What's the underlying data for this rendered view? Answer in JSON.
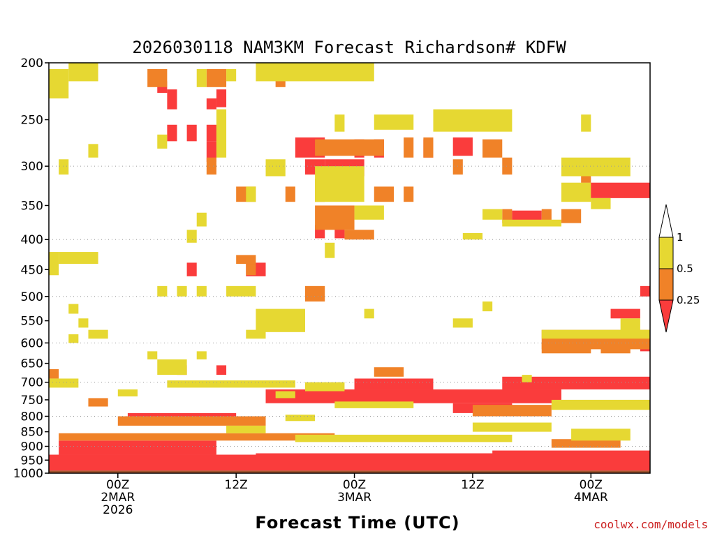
{
  "chart_data": {
    "type": "heatmap",
    "title": "2026030118 NAM3KM Forecast Richardson# KDFW",
    "xlabel": "Forecast Time (UTC)",
    "credit": "coolwx.com/models",
    "y_axis": {
      "scale": "log",
      "range": [
        1000,
        200
      ],
      "ticks": [
        200,
        250,
        300,
        350,
        400,
        450,
        500,
        550,
        600,
        650,
        700,
        750,
        800,
        850,
        900,
        950,
        1000
      ],
      "dotted_gridlines": [
        300,
        400,
        500,
        600,
        700,
        800,
        900,
        1000
      ]
    },
    "x_axis": {
      "range_hours": [
        -7,
        54
      ],
      "ticks": [
        {
          "hour": 0,
          "lines": [
            "00Z",
            "2MAR",
            "2026"
          ]
        },
        {
          "hour": 12,
          "lines": [
            "12Z"
          ]
        },
        {
          "hour": 24,
          "lines": [
            "00Z",
            "3MAR"
          ]
        },
        {
          "hour": 36,
          "lines": [
            "12Z"
          ]
        },
        {
          "hour": 48,
          "lines": [
            "00Z",
            "4MAR"
          ]
        }
      ]
    },
    "legend": {
      "placement": "right",
      "labels": [
        "1",
        "0.5",
        "0.25"
      ],
      "bins": [
        {
          "range": "> 1",
          "color": "#ffffff"
        },
        {
          "range": "0.5 - 1",
          "color": "#e6d832"
        },
        {
          "range": "0.25 - 0.5",
          "color": "#f08228"
        },
        {
          "range": "< 0.25",
          "color": "#fa3c3c"
        }
      ]
    },
    "colors": {
      "ri_lt_0_25": "#fa3c3c",
      "ri_0_25_0_5": "#f08228",
      "ri_0_5_1": "#e6d832",
      "below_ground": "#a0522d"
    },
    "below_ground_p_hpa": 990,
    "cells": [
      {
        "h0": 39,
        "h1": 54,
        "p0": 685,
        "p1": 720,
        "bin": "ri_lt_0_25"
      },
      {
        "h0": 15,
        "h1": 45,
        "p0": 720,
        "p1": 760,
        "bin": "ri_lt_0_25"
      },
      {
        "h0": 24,
        "h1": 32,
        "p0": 690,
        "p1": 720,
        "bin": "ri_lt_0_25"
      },
      {
        "h0": 34,
        "h1": 40,
        "p0": 760,
        "p1": 790,
        "bin": "ri_lt_0_25"
      },
      {
        "h0": 1,
        "h1": 12,
        "p0": 790,
        "p1": 815,
        "bin": "ri_lt_0_25"
      },
      {
        "h0": 47,
        "h1": 54,
        "p0": 320,
        "p1": 340,
        "bin": "ri_lt_0_25"
      },
      {
        "h0": 18,
        "h1": 21,
        "p0": 268,
        "p1": 290,
        "bin": "ri_lt_0_25"
      },
      {
        "h0": 24,
        "h1": 25,
        "p0": 270,
        "p1": 290,
        "bin": "ri_lt_0_25"
      },
      {
        "h0": 26,
        "h1": 27,
        "p0": 270,
        "p1": 290,
        "bin": "ri_lt_0_25"
      },
      {
        "h0": 31,
        "h1": 32,
        "p0": 270,
        "p1": 290,
        "bin": "ri_lt_0_25"
      },
      {
        "h0": 34,
        "h1": 36,
        "p0": 268,
        "p1": 288,
        "bin": "ri_lt_0_25"
      },
      {
        "h0": 19,
        "h1": 21,
        "p0": 292,
        "p1": 310,
        "bin": "ri_lt_0_25"
      },
      {
        "h0": 21,
        "h1": 25,
        "p0": 292,
        "p1": 312,
        "bin": "ri_lt_0_25"
      },
      {
        "h0": 40,
        "h1": 43,
        "p0": 357,
        "p1": 375,
        "bin": "ri_lt_0_25"
      },
      {
        "h0": 20,
        "h1": 21,
        "p0": 378,
        "p1": 398,
        "bin": "ri_lt_0_25"
      },
      {
        "h0": 22,
        "h1": 23,
        "p0": 378,
        "p1": 398,
        "bin": "ri_lt_0_25"
      },
      {
        "h0": 13,
        "h1": 15,
        "p0": 438,
        "p1": 462,
        "bin": "ri_lt_0_25"
      },
      {
        "h0": 7,
        "h1": 8,
        "p0": 438,
        "p1": 462,
        "bin": "ri_lt_0_25"
      },
      {
        "h0": 50,
        "h1": 53,
        "p0": 525,
        "p1": 545,
        "bin": "ri_lt_0_25"
      },
      {
        "h0": 53,
        "h1": 54,
        "p0": 480,
        "p1": 500,
        "bin": "ri_lt_0_25"
      },
      {
        "h0": 53,
        "h1": 54,
        "p0": 590,
        "p1": 620,
        "bin": "ri_lt_0_25"
      },
      {
        "h0": 4,
        "h1": 5,
        "p0": 215,
        "p1": 225,
        "bin": "ri_lt_0_25"
      },
      {
        "h0": 5,
        "h1": 6,
        "p0": 222,
        "p1": 240,
        "bin": "ri_lt_0_25"
      },
      {
        "h0": 10,
        "h1": 11,
        "p0": 222,
        "p1": 238,
        "bin": "ri_lt_0_25"
      },
      {
        "h0": 5,
        "h1": 6,
        "p0": 255,
        "p1": 272,
        "bin": "ri_lt_0_25"
      },
      {
        "h0": 7,
        "h1": 8,
        "p0": 255,
        "p1": 272,
        "bin": "ri_lt_0_25"
      },
      {
        "h0": 9,
        "h1": 10,
        "p0": 255,
        "p1": 272,
        "bin": "ri_lt_0_25"
      },
      {
        "h0": 9,
        "h1": 10,
        "p0": 272,
        "p1": 295,
        "bin": "ri_lt_0_25"
      },
      {
        "h0": 9,
        "h1": 10,
        "p0": 230,
        "p1": 240,
        "bin": "ri_lt_0_25"
      },
      {
        "h0": 6,
        "h1": 7,
        "p0": 655,
        "p1": 680,
        "bin": "ri_lt_0_25"
      },
      {
        "h0": 10,
        "h1": 11,
        "p0": 655,
        "p1": 680,
        "bin": "ri_lt_0_25"
      },
      {
        "h0": 25,
        "h1": 27,
        "p0": 735,
        "p1": 770,
        "bin": "ri_lt_0_25"
      },
      {
        "h0": 28,
        "h1": 30,
        "p0": 725,
        "p1": 760,
        "bin": "ri_lt_0_25"
      },
      {
        "h0": -7,
        "h1": 54,
        "p0": 930,
        "p1": 990,
        "bin": "ri_lt_0_25"
      },
      {
        "h0": -6,
        "h1": 10,
        "p0": 880,
        "p1": 930,
        "bin": "ri_lt_0_25"
      },
      {
        "h0": 14,
        "h1": 54,
        "p0": 925,
        "p1": 940,
        "bin": "ri_lt_0_25"
      },
      {
        "h0": 38,
        "h1": 54,
        "p0": 915,
        "p1": 930,
        "bin": "ri_lt_0_25"
      },
      {
        "h0": 20,
        "h1": 27,
        "p0": 270,
        "p1": 288,
        "bin": "ri_0_25_0_5"
      },
      {
        "h0": 37,
        "h1": 39,
        "p0": 270,
        "p1": 290,
        "bin": "ri_0_25_0_5"
      },
      {
        "h0": 29,
        "h1": 30,
        "p0": 268,
        "p1": 290,
        "bin": "ri_0_25_0_5"
      },
      {
        "h0": 31,
        "h1": 32,
        "p0": 268,
        "p1": 290,
        "bin": "ri_0_25_0_5"
      },
      {
        "h0": 20,
        "h1": 24,
        "p0": 350,
        "p1": 385,
        "bin": "ri_0_25_0_5"
      },
      {
        "h0": 23,
        "h1": 26,
        "p0": 385,
        "p1": 400,
        "bin": "ri_0_25_0_5"
      },
      {
        "h0": 20,
        "h1": 21,
        "p0": 315,
        "p1": 345,
        "bin": "ri_0_25_0_5"
      },
      {
        "h0": 26,
        "h1": 28,
        "p0": 325,
        "p1": 345,
        "bin": "ri_0_25_0_5"
      },
      {
        "h0": 29,
        "h1": 30,
        "p0": 325,
        "p1": 345,
        "bin": "ri_0_25_0_5"
      },
      {
        "h0": 17,
        "h1": 18,
        "p0": 325,
        "p1": 345,
        "bin": "ri_0_25_0_5"
      },
      {
        "h0": 39,
        "h1": 40,
        "p0": 355,
        "p1": 375,
        "bin": "ri_0_25_0_5"
      },
      {
        "h0": 43,
        "h1": 44,
        "p0": 355,
        "p1": 375,
        "bin": "ri_0_25_0_5"
      },
      {
        "h0": 45,
        "h1": 47,
        "p0": 355,
        "p1": 375,
        "bin": "ri_0_25_0_5"
      },
      {
        "h0": 47,
        "h1": 48,
        "p0": 305,
        "p1": 320,
        "bin": "ri_0_25_0_5"
      },
      {
        "h0": 12,
        "h1": 14,
        "p0": 325,
        "p1": 345,
        "bin": "ri_0_25_0_5"
      },
      {
        "h0": 39,
        "h1": 40,
        "p0": 290,
        "p1": 310,
        "bin": "ri_0_25_0_5"
      },
      {
        "h0": 34,
        "h1": 35,
        "p0": 292,
        "p1": 310,
        "bin": "ri_0_25_0_5"
      },
      {
        "h0": 9,
        "h1": 10,
        "p0": 290,
        "p1": 310,
        "bin": "ri_0_25_0_5"
      },
      {
        "h0": 43,
        "h1": 54,
        "p0": 570,
        "p1": 615,
        "bin": "ri_0_25_0_5"
      },
      {
        "h0": 43,
        "h1": 48,
        "p0": 600,
        "p1": 625,
        "bin": "ri_0_25_0_5"
      },
      {
        "h0": 49,
        "h1": 52,
        "p0": 590,
        "p1": 625,
        "bin": "ri_0_25_0_5"
      },
      {
        "h0": 19,
        "h1": 21,
        "p0": 480,
        "p1": 510,
        "bin": "ri_0_25_0_5"
      },
      {
        "h0": 36,
        "h1": 44,
        "p0": 765,
        "p1": 800,
        "bin": "ri_0_25_0_5"
      },
      {
        "h0": 26,
        "h1": 29,
        "p0": 660,
        "p1": 685,
        "bin": "ri_0_25_0_5"
      },
      {
        "h0": 3,
        "h1": 5,
        "p0": 205,
        "p1": 220,
        "bin": "ri_0_25_0_5"
      },
      {
        "h0": 9,
        "h1": 11,
        "p0": 205,
        "p1": 220,
        "bin": "ri_0_25_0_5"
      },
      {
        "h0": 16,
        "h1": 17,
        "p0": 205,
        "p1": 220,
        "bin": "ri_0_25_0_5"
      },
      {
        "h0": 13,
        "h1": 14,
        "p0": 440,
        "p1": 460,
        "bin": "ri_0_25_0_5"
      },
      {
        "h0": 12,
        "h1": 14,
        "p0": 425,
        "p1": 440,
        "bin": "ri_0_25_0_5"
      },
      {
        "h0": -7,
        "h1": -6,
        "p0": 665,
        "p1": 690,
        "bin": "ri_0_25_0_5"
      },
      {
        "h0": -3,
        "h1": -1,
        "p0": 745,
        "p1": 770,
        "bin": "ri_0_25_0_5"
      },
      {
        "h0": 0,
        "h1": 15,
        "p0": 800,
        "p1": 830,
        "bin": "ri_0_25_0_5"
      },
      {
        "h0": -6,
        "h1": 22,
        "p0": 855,
        "p1": 880,
        "bin": "ri_0_25_0_5"
      },
      {
        "h0": 44,
        "h1": 51,
        "p0": 875,
        "p1": 905,
        "bin": "ri_0_25_0_5"
      },
      {
        "h0": -7,
        "h1": -5,
        "p0": 205,
        "p1": 230,
        "bin": "ri_0_5_1"
      },
      {
        "h0": -5,
        "h1": -2,
        "p0": 200,
        "p1": 215,
        "bin": "ri_0_5_1"
      },
      {
        "h0": 14,
        "h1": 26,
        "p0": 200,
        "p1": 215,
        "bin": "ri_0_5_1"
      },
      {
        "h0": 8,
        "h1": 9,
        "p0": 205,
        "p1": 220,
        "bin": "ri_0_5_1"
      },
      {
        "h0": 11,
        "h1": 12,
        "p0": 205,
        "p1": 215,
        "bin": "ri_0_5_1"
      },
      {
        "h0": 32,
        "h1": 40,
        "p0": 240,
        "p1": 262,
        "bin": "ri_0_5_1"
      },
      {
        "h0": 26,
        "h1": 30,
        "p0": 245,
        "p1": 260,
        "bin": "ri_0_5_1"
      },
      {
        "h0": 22,
        "h1": 23,
        "p0": 245,
        "p1": 262,
        "bin": "ri_0_5_1"
      },
      {
        "h0": 47,
        "h1": 48,
        "p0": 245,
        "p1": 262,
        "bin": "ri_0_5_1"
      },
      {
        "h0": 10,
        "h1": 11,
        "p0": 240,
        "p1": 290,
        "bin": "ri_0_5_1"
      },
      {
        "h0": 4,
        "h1": 5,
        "p0": 265,
        "p1": 280,
        "bin": "ri_0_5_1"
      },
      {
        "h0": -3,
        "h1": -2,
        "p0": 275,
        "p1": 290,
        "bin": "ri_0_5_1"
      },
      {
        "h0": -6,
        "h1": -5,
        "p0": 292,
        "p1": 310,
        "bin": "ri_0_5_1"
      },
      {
        "h0": 15,
        "h1": 17,
        "p0": 292,
        "p1": 312,
        "bin": "ri_0_5_1"
      },
      {
        "h0": 20,
        "h1": 25,
        "p0": 300,
        "p1": 345,
        "bin": "ri_0_5_1"
      },
      {
        "h0": 24,
        "h1": 27,
        "p0": 350,
        "p1": 370,
        "bin": "ri_0_5_1"
      },
      {
        "h0": 39,
        "h1": 45,
        "p0": 370,
        "p1": 380,
        "bin": "ri_0_5_1"
      },
      {
        "h0": 45,
        "h1": 52,
        "p0": 290,
        "p1": 312,
        "bin": "ri_0_5_1"
      },
      {
        "h0": 45,
        "h1": 48,
        "p0": 320,
        "p1": 345,
        "bin": "ri_0_5_1"
      },
      {
        "h0": 48,
        "h1": 50,
        "p0": 340,
        "p1": 355,
        "bin": "ri_0_5_1"
      },
      {
        "h0": 37,
        "h1": 39,
        "p0": 355,
        "p1": 370,
        "bin": "ri_0_5_1"
      },
      {
        "h0": 35,
        "h1": 37,
        "p0": 390,
        "p1": 400,
        "bin": "ri_0_5_1"
      },
      {
        "h0": 13,
        "h1": 14,
        "p0": 325,
        "p1": 345,
        "bin": "ri_0_5_1"
      },
      {
        "h0": 8,
        "h1": 9,
        "p0": 360,
        "p1": 380,
        "bin": "ri_0_5_1"
      },
      {
        "h0": 7,
        "h1": 8,
        "p0": 385,
        "p1": 405,
        "bin": "ri_0_5_1"
      },
      {
        "h0": -6,
        "h1": -2,
        "p0": 420,
        "p1": 440,
        "bin": "ri_0_5_1"
      },
      {
        "h0": -7,
        "h1": -6,
        "p0": 420,
        "p1": 460,
        "bin": "ri_0_5_1"
      },
      {
        "h0": 21,
        "h1": 22,
        "p0": 405,
        "p1": 430,
        "bin": "ri_0_5_1"
      },
      {
        "h0": 11,
        "h1": 14,
        "p0": 480,
        "p1": 500,
        "bin": "ri_0_5_1"
      },
      {
        "h0": 14,
        "h1": 19,
        "p0": 525,
        "p1": 575,
        "bin": "ri_0_5_1"
      },
      {
        "h0": 13,
        "h1": 15,
        "p0": 570,
        "p1": 590,
        "bin": "ri_0_5_1"
      },
      {
        "h0": 4,
        "h1": 5,
        "p0": 480,
        "p1": 500,
        "bin": "ri_0_5_1"
      },
      {
        "h0": 6,
        "h1": 7,
        "p0": 480,
        "p1": 500,
        "bin": "ri_0_5_1"
      },
      {
        "h0": 8,
        "h1": 9,
        "p0": 480,
        "p1": 500,
        "bin": "ri_0_5_1"
      },
      {
        "h0": -5,
        "h1": -4,
        "p0": 515,
        "p1": 535,
        "bin": "ri_0_5_1"
      },
      {
        "h0": -4,
        "h1": -3,
        "p0": 545,
        "p1": 565,
        "bin": "ri_0_5_1"
      },
      {
        "h0": -3,
        "h1": -1,
        "p0": 570,
        "p1": 590,
        "bin": "ri_0_5_1"
      },
      {
        "h0": -5,
        "h1": -4,
        "p0": 580,
        "p1": 600,
        "bin": "ri_0_5_1"
      },
      {
        "h0": 34,
        "h1": 36,
        "p0": 545,
        "p1": 565,
        "bin": "ri_0_5_1"
      },
      {
        "h0": 43,
        "h1": 54,
        "p0": 570,
        "p1": 590,
        "bin": "ri_0_5_1"
      },
      {
        "h0": 51,
        "h1": 53,
        "p0": 545,
        "p1": 575,
        "bin": "ri_0_5_1"
      },
      {
        "h0": 4,
        "h1": 7,
        "p0": 640,
        "p1": 680,
        "bin": "ri_0_5_1"
      },
      {
        "h0": 8,
        "h1": 9,
        "p0": 620,
        "p1": 640,
        "bin": "ri_0_5_1"
      },
      {
        "h0": 3,
        "h1": 4,
        "p0": 620,
        "p1": 640,
        "bin": "ri_0_5_1"
      },
      {
        "h0": 5,
        "h1": 18,
        "p0": 695,
        "p1": 715,
        "bin": "ri_0_5_1"
      },
      {
        "h0": -7,
        "h1": -4,
        "p0": 690,
        "p1": 715,
        "bin": "ri_0_5_1"
      },
      {
        "h0": 0,
        "h1": 2,
        "p0": 720,
        "p1": 740,
        "bin": "ri_0_5_1"
      },
      {
        "h0": 16,
        "h1": 18,
        "p0": 725,
        "p1": 745,
        "bin": "ri_0_5_1"
      },
      {
        "h0": 19,
        "h1": 23,
        "p0": 700,
        "p1": 725,
        "bin": "ri_0_5_1"
      },
      {
        "h0": 22,
        "h1": 30,
        "p0": 755,
        "p1": 775,
        "bin": "ri_0_5_1"
      },
      {
        "h0": 25,
        "h1": 26,
        "p0": 525,
        "p1": 545,
        "bin": "ri_0_5_1"
      },
      {
        "h0": 37,
        "h1": 38,
        "p0": 510,
        "p1": 530,
        "bin": "ri_0_5_1"
      },
      {
        "h0": 41,
        "h1": 42,
        "p0": 680,
        "p1": 700,
        "bin": "ri_0_5_1"
      },
      {
        "h0": 44,
        "h1": 54,
        "p0": 750,
        "p1": 780,
        "bin": "ri_0_5_1"
      },
      {
        "h0": 46,
        "h1": 52,
        "p0": 840,
        "p1": 880,
        "bin": "ri_0_5_1"
      },
      {
        "h0": 18,
        "h1": 40,
        "p0": 860,
        "p1": 885,
        "bin": "ri_0_5_1"
      },
      {
        "h0": 36,
        "h1": 44,
        "p0": 820,
        "p1": 850,
        "bin": "ri_0_5_1"
      },
      {
        "h0": 11,
        "h1": 15,
        "p0": 830,
        "p1": 855,
        "bin": "ri_0_5_1"
      },
      {
        "h0": 17,
        "h1": 20,
        "p0": 795,
        "p1": 815,
        "bin": "ri_0_5_1"
      }
    ]
  }
}
